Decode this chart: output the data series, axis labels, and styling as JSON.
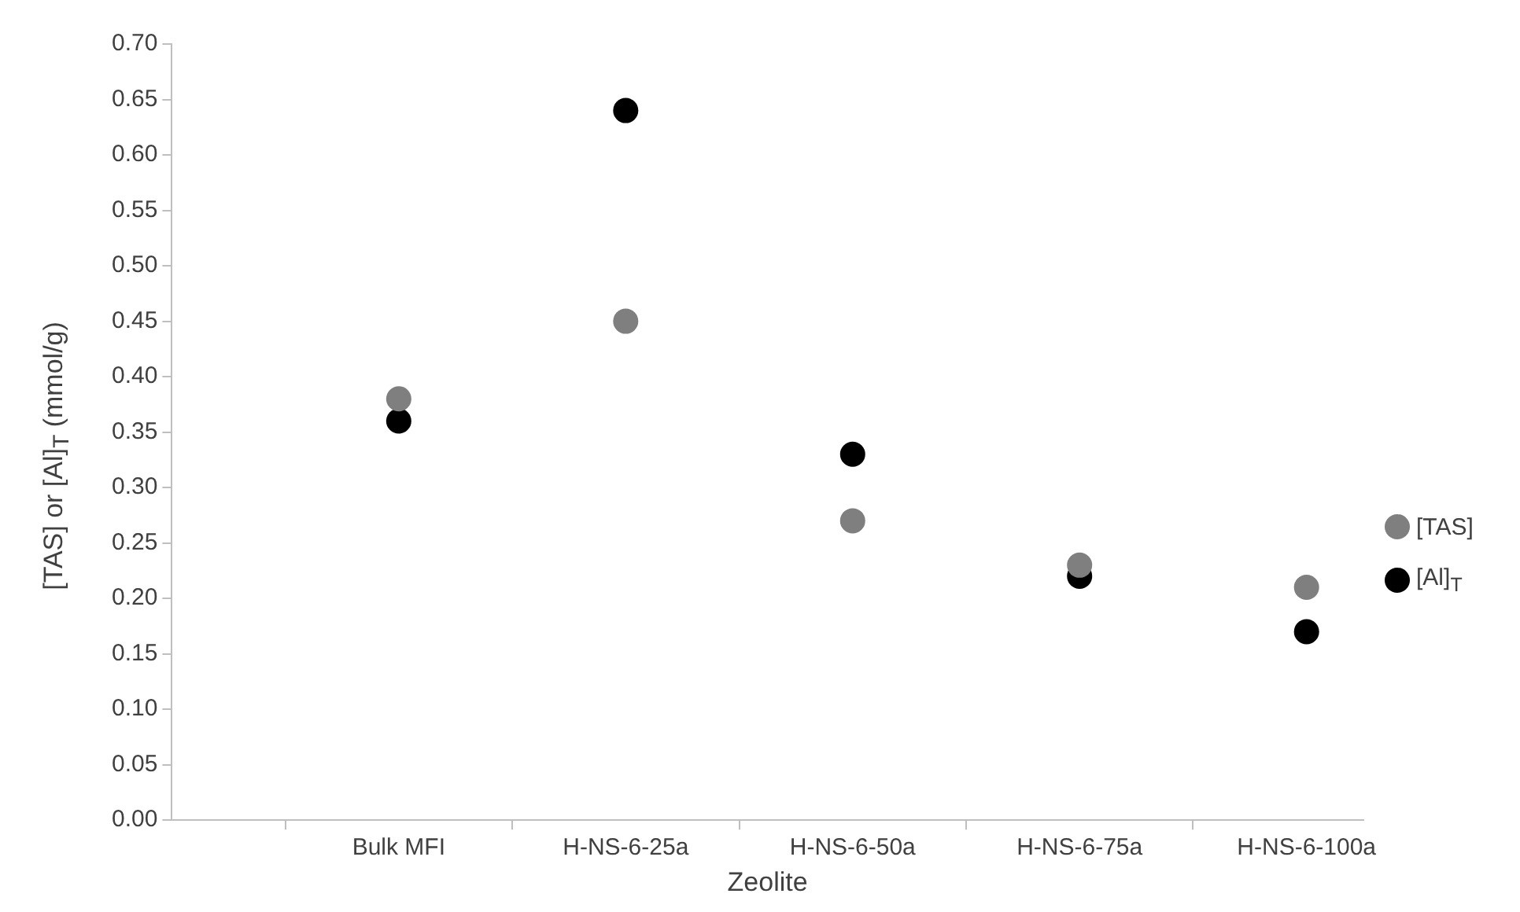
{
  "chart_data": {
    "type": "scatter",
    "xlabel": "Zeolite",
    "ylabel": "[TAS] or [Al]$_{T}$ (mmol/g)",
    "categories": [
      "Bulk MFI",
      "H-NS-6-25a",
      "H-NS-6-50a",
      "H-NS-6-75a",
      "H-NS-6-100a"
    ],
    "series": [
      {
        "name": "[TAS]",
        "color": "#7f7f7f",
        "values": [
          0.38,
          0.45,
          0.27,
          0.23,
          0.21
        ]
      },
      {
        "name": "[Al]$_{T}$",
        "color": "#000000",
        "values": [
          0.36,
          0.64,
          0.33,
          0.22,
          0.17
        ]
      }
    ],
    "ylim": [
      0,
      0.7
    ],
    "yticks": [
      {
        "value": 0,
        "label": "0.00"
      },
      {
        "value": 0.05,
        "label": "0.05"
      },
      {
        "value": 0.1,
        "label": "0.10"
      },
      {
        "value": 0.15,
        "label": "0.15"
      },
      {
        "value": 0.2,
        "label": "0.20"
      },
      {
        "value": 0.25,
        "label": "0.25"
      },
      {
        "value": 0.3,
        "label": "0.30"
      },
      {
        "value": 0.35,
        "label": "0.35"
      },
      {
        "value": 0.4,
        "label": "0.40"
      },
      {
        "value": 0.45,
        "label": "0.45"
      },
      {
        "value": 0.5,
        "label": "0.50"
      },
      {
        "value": 0.55,
        "label": "0.55"
      },
      {
        "value": 0.6,
        "label": "0.60"
      },
      {
        "value": 0.65,
        "label": "0.65"
      },
      {
        "value": 0.7,
        "label": "0.70"
      }
    ],
    "grid": false,
    "legend": "right",
    "marker": "circle"
  }
}
